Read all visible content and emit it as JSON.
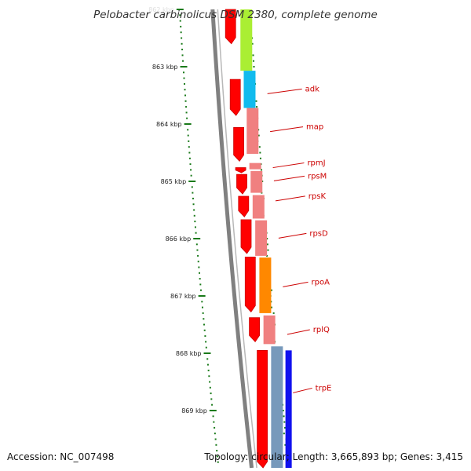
{
  "title": "Pelobacter carbinolicus DSM 2380, complete genome",
  "footer": {
    "accession_label": "Accession:",
    "accession": "NC_007498",
    "topology_label": "Topology:",
    "topology": "circular",
    "length_label": "Length:",
    "length": "3,665,893 bp",
    "genes_label": "Genes:",
    "genes": "3,415"
  },
  "colors": {
    "cds": "#ff0000",
    "backbone": "#808080",
    "tick": "#1a7a1a",
    "label": "#cc0000",
    "lime": "#aaee33",
    "cyan": "#11bbee",
    "pink": "#f08080",
    "orange": "#ff8800",
    "blue": "#1111ee",
    "steel": "#7799bb"
  },
  "chart_data": {
    "type": "genome-map",
    "units": "kbp",
    "visible_range_kbp": [
      862,
      870
    ],
    "ticks": [
      {
        "kbp": 862,
        "label": "862 kbp"
      },
      {
        "kbp": 863,
        "label": "863 kbp"
      },
      {
        "kbp": 864,
        "label": "864 kbp"
      },
      {
        "kbp": 865,
        "label": "865 kbp"
      },
      {
        "kbp": 866,
        "label": "866 kbp"
      },
      {
        "kbp": 867,
        "label": "867 kbp"
      },
      {
        "kbp": 868,
        "label": "868 kbp"
      },
      {
        "kbp": 869,
        "label": "869 kbp"
      }
    ],
    "cds_track": [
      {
        "start": 862.0,
        "end": 862.6
      },
      {
        "start": 863.22,
        "end": 863.85
      },
      {
        "start": 864.06,
        "end": 864.65
      },
      {
        "start": 864.76,
        "end": 864.85
      },
      {
        "start": 864.88,
        "end": 865.22
      },
      {
        "start": 865.26,
        "end": 865.62
      },
      {
        "start": 865.67,
        "end": 866.26
      },
      {
        "start": 866.32,
        "end": 867.28
      },
      {
        "start": 867.38,
        "end": 867.8
      },
      {
        "start": 867.95,
        "end": 870.0
      }
    ],
    "feature_track": [
      {
        "start": 862.0,
        "end": 863.07,
        "color": "lime"
      },
      {
        "start": 863.07,
        "end": 863.72,
        "color": "cyan"
      },
      {
        "start": 863.72,
        "end": 864.52,
        "color": "pink"
      },
      {
        "start": 864.68,
        "end": 864.79,
        "color": "pink"
      },
      {
        "start": 864.82,
        "end": 865.2,
        "color": "pink"
      },
      {
        "start": 865.24,
        "end": 865.65,
        "color": "pink"
      },
      {
        "start": 865.68,
        "end": 866.3,
        "color": "pink"
      },
      {
        "start": 866.33,
        "end": 867.3,
        "color": "orange"
      },
      {
        "start": 867.34,
        "end": 867.84,
        "color": "pink"
      },
      {
        "start": 867.88,
        "end": 870.0,
        "color": "steel"
      }
    ],
    "blue_track": [
      {
        "start": 867.95,
        "end": 870.0
      }
    ],
    "genes": [
      {
        "name": "adk",
        "kbp": 863.43
      },
      {
        "name": "map",
        "kbp": 864.09
      },
      {
        "name": "rpmJ",
        "kbp": 864.72
      },
      {
        "name": "rpsM",
        "kbp": 864.95
      },
      {
        "name": "rpsK",
        "kbp": 865.3
      },
      {
        "name": "rpsD",
        "kbp": 865.95
      },
      {
        "name": "rpoA",
        "kbp": 866.8
      },
      {
        "name": "rplQ",
        "kbp": 867.63
      },
      {
        "name": "trpE",
        "kbp": 868.65
      }
    ]
  }
}
